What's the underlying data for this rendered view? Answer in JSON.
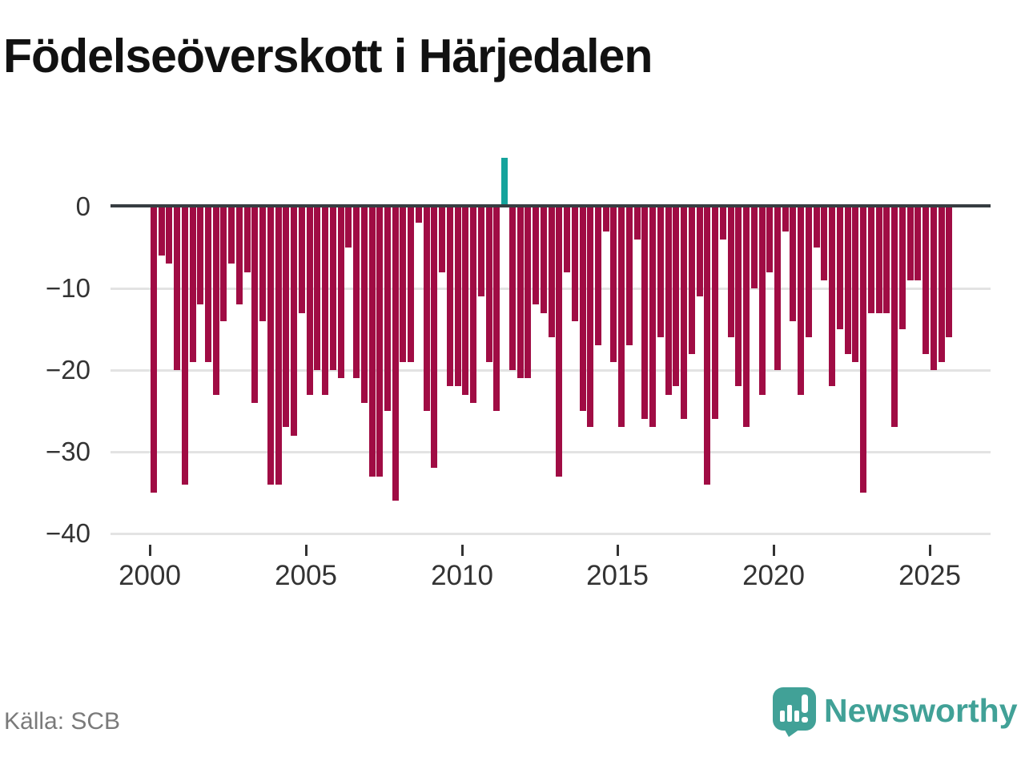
{
  "title": "Födelseöverskott i Härjedalen",
  "source": "Källa: SCB",
  "logo": {
    "text": "Newsworthy"
  },
  "colors": {
    "negative_bar": "#a00c44",
    "positive_bar": "#15a39c",
    "zero_line": "#373d41",
    "gridline": "#e3e3e3",
    "axis_text": "#333333",
    "title_text": "#111111",
    "source_text": "#7a7a7a",
    "logo_teal": "#41a197"
  },
  "chart_data": {
    "type": "bar",
    "title": "Födelseöverskott i Härjedalen",
    "xlabel": "",
    "ylabel": "",
    "x_unit": "quarter",
    "start_period": "2000 Q1",
    "end_period": "2025 Q3",
    "ylim": [
      -40,
      7
    ],
    "grid": true,
    "legend": false,
    "y_tick_labels": [
      "0",
      "−10",
      "−20",
      "−30",
      "−40"
    ],
    "y_tick_values": [
      0,
      -10,
      -20,
      -30,
      -40
    ],
    "x_tick_labels": [
      "2000",
      "2005",
      "2010",
      "2015",
      "2020",
      "2025"
    ],
    "values": [
      -35,
      -6,
      -7,
      -20,
      -34,
      -19,
      -12,
      -19,
      -23,
      -14,
      -7,
      -12,
      -8,
      -24,
      -14,
      -34,
      -34,
      -27,
      -28,
      -13,
      -23,
      -20,
      -23,
      -20,
      -21,
      -5,
      -21,
      -24,
      -33,
      -33,
      -25,
      -36,
      -19,
      -19,
      -2,
      -25,
      -32,
      -8,
      -22,
      -22,
      -23,
      -24,
      -11,
      -19,
      -25,
      6,
      -20,
      -21,
      -21,
      -12,
      -13,
      -16,
      -33,
      -8,
      -14,
      -25,
      -27,
      -17,
      -3,
      -19,
      -27,
      -17,
      -4,
      -26,
      -27,
      -16,
      -23,
      -22,
      -26,
      -18,
      -11,
      -34,
      -26,
      -4,
      -16,
      -22,
      -27,
      -10,
      -23,
      -8,
      -20,
      -3,
      -14,
      -23,
      -16,
      -5,
      -9,
      -22,
      -15,
      -18,
      -19,
      -35,
      -13,
      -13,
      -13,
      -27,
      -15,
      -9,
      -9,
      -18,
      -20,
      -19,
      -16
    ],
    "positive_value_index": 45,
    "positive_value_period": "2011 Q2"
  }
}
